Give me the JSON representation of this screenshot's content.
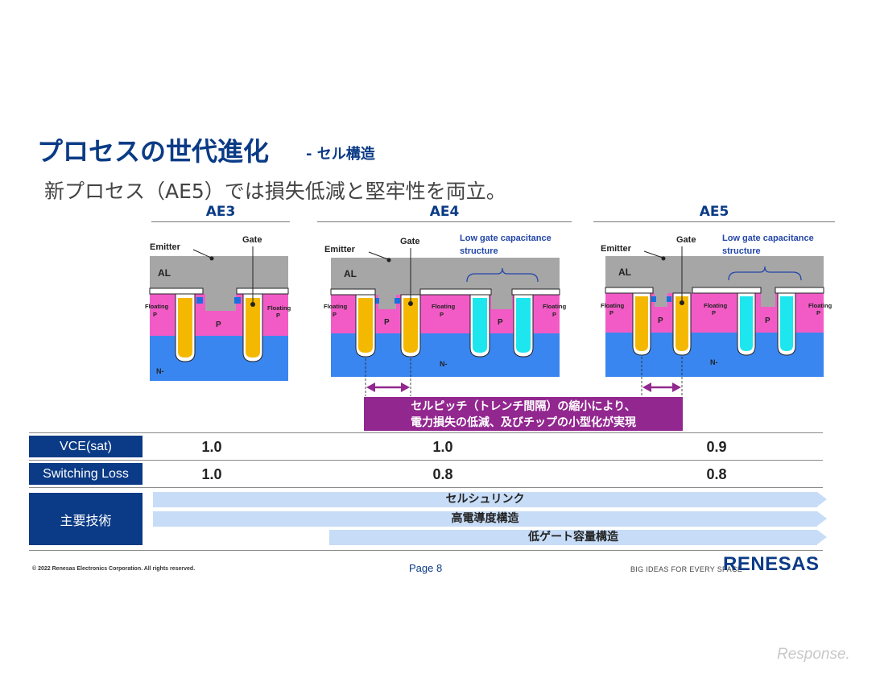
{
  "header": {
    "title": "プロセスの世代進化",
    "title_suffix": "- セル構造",
    "subtitle": "新プロセス（AE5）では損失低減と堅牢性を両立。"
  },
  "generations": [
    {
      "name": "AE3"
    },
    {
      "name": "AE4"
    },
    {
      "name": "AE5"
    }
  ],
  "labels": {
    "emitter": "Emitter",
    "gate": "Gate",
    "al": "AL",
    "floating_p_1": "Floating",
    "floating_p_2": "P",
    "p": "P",
    "n_minus": "N-",
    "low_gate_1": "Low gate capacitance",
    "low_gate_2": "structure"
  },
  "callout": {
    "line1": "セルピッチ（トレンチ間隔）の縮小により、",
    "line2": "電力損失の低減、及びチップの小型化が実現"
  },
  "metrics": [
    {
      "label": "VCE(sat)",
      "values": [
        "1.0",
        "1.0",
        "0.9"
      ]
    },
    {
      "label": "Switching Loss",
      "values": [
        "1.0",
        "0.8",
        "0.8"
      ]
    }
  ],
  "tech": {
    "label": "主要技術",
    "items": [
      "セルシュリンク",
      "高電導度構造",
      "低ゲート容量構造"
    ]
  },
  "footer": {
    "copyright": "© 2022 Renesas Electronics Corporation. All rights reserved.",
    "page": "Page 8",
    "tagline": "BIG IDEAS FOR EVERY SPACE",
    "logo": "RENESAS"
  },
  "watermark": "Response.",
  "colors": {
    "brand_blue": "#0b3b86",
    "al_gray": "#a6a6a6",
    "p_pink": "#f25bc6",
    "n_blue": "#3a86f0",
    "gate_gold": "#f5b800",
    "gate_cyan": "#1ee6ee",
    "callout_purple": "#92278f",
    "tech_bar": "#c7dcf6"
  }
}
